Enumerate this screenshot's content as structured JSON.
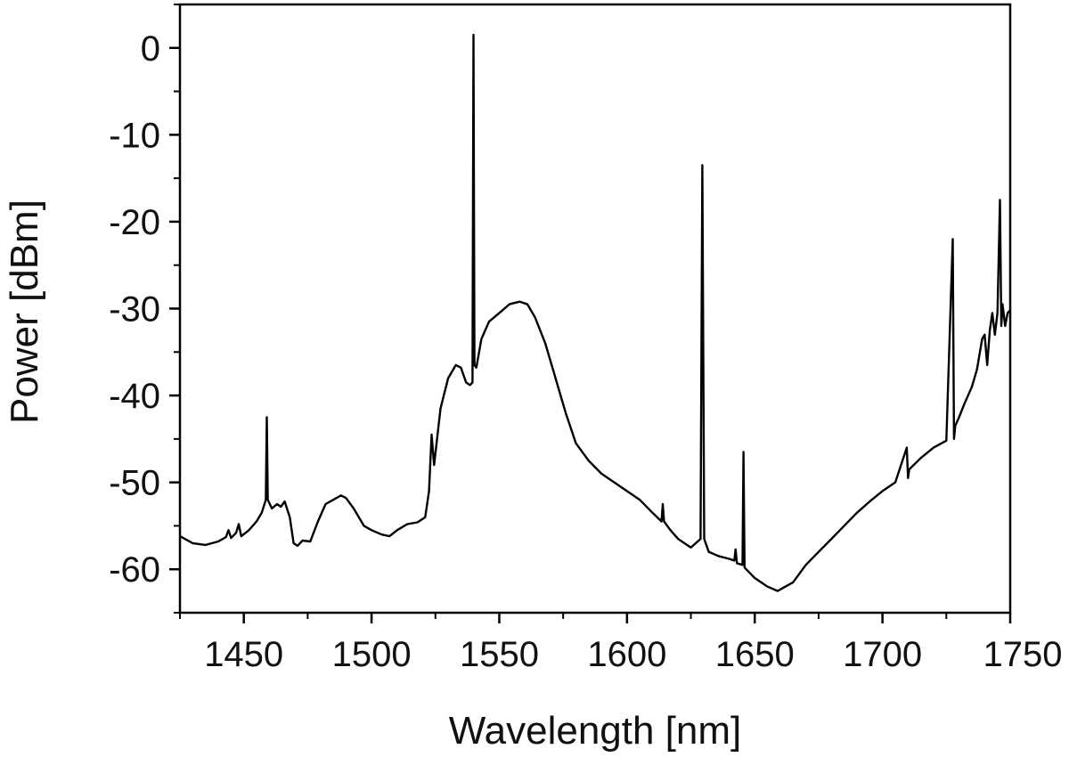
{
  "chart_data": {
    "type": "line",
    "title": "",
    "xlabel": "Wavelength [nm]",
    "ylabel": "Power [dBm]",
    "xlim": [
      1425,
      1750
    ],
    "ylim": [
      -65,
      5
    ],
    "grid": false,
    "legend": "none",
    "x_ticks": [
      1450,
      1500,
      1550,
      1600,
      1650,
      1700,
      1750
    ],
    "y_ticks": [
      0,
      -10,
      -20,
      -30,
      -40,
      -50,
      -60
    ],
    "line_color": "#000000",
    "series": [
      {
        "x": [
          1425,
          1430,
          1435,
          1440,
          1443,
          1444,
          1445,
          1447,
          1448,
          1449,
          1452,
          1455,
          1457,
          1458.6,
          1459,
          1459.4,
          1461,
          1463,
          1464.5,
          1466,
          1468,
          1469.5,
          1471,
          1473,
          1476,
          1479,
          1482,
          1485,
          1488,
          1490,
          1493,
          1497,
          1500,
          1504,
          1507,
          1510,
          1514,
          1518,
          1521,
          1522.5,
          1523.5,
          1524.5,
          1527,
          1530,
          1533,
          1535,
          1537,
          1538.5,
          1539.5,
          1539.9,
          1540.3,
          1541,
          1543,
          1546,
          1550,
          1554,
          1558,
          1561,
          1564,
          1568,
          1572,
          1576,
          1580,
          1585,
          1590,
          1595,
          1600,
          1605,
          1610,
          1613.5,
          1614,
          1614.5,
          1617,
          1620,
          1625,
          1628.8,
          1629.5,
          1630.2,
          1632,
          1636,
          1640,
          1642,
          1642.5,
          1643,
          1645.2,
          1645.6,
          1646,
          1650,
          1655,
          1659,
          1662,
          1665,
          1670,
          1675,
          1680,
          1685,
          1690,
          1695,
          1700,
          1705,
          1709.5,
          1710,
          1710.5,
          1715,
          1720,
          1725,
          1727.5,
          1728,
          1728.5,
          1730,
          1732,
          1735,
          1737,
          1739,
          1740,
          1741,
          1742,
          1743,
          1744,
          1745,
          1746,
          1746.5,
          1747,
          1748,
          1749,
          1750
        ],
        "y": [
          -56.2,
          -57,
          -57.2,
          -56.8,
          -56.3,
          -55.5,
          -56.4,
          -55.8,
          -54.8,
          -56.2,
          -55.5,
          -54.5,
          -53.5,
          -52,
          -42.5,
          -52,
          -53,
          -52.5,
          -52.8,
          -52.2,
          -54,
          -57,
          -57.3,
          -56.7,
          -56.8,
          -54.5,
          -52.5,
          -52,
          -51.5,
          -51.8,
          -53,
          -55,
          -55.5,
          -56,
          -56.2,
          -55.5,
          -54.8,
          -54.6,
          -54,
          -51,
          -44.5,
          -48,
          -41.5,
          -38,
          -36.5,
          -36.8,
          -38.5,
          -38.8,
          -38.5,
          1.5,
          -36.5,
          -36.8,
          -33.5,
          -31.5,
          -30.5,
          -29.5,
          -29.2,
          -29.5,
          -31,
          -34,
          -38,
          -42,
          -45.5,
          -47.5,
          -49,
          -50,
          -51,
          -52,
          -53.5,
          -54.5,
          -52.5,
          -54.5,
          -55.5,
          -56.5,
          -57.5,
          -56.5,
          -13.5,
          -56.5,
          -58,
          -58.5,
          -58.8,
          -59,
          -57.7,
          -59.3,
          -59.5,
          -46.5,
          -59.8,
          -61,
          -62,
          -62.5,
          -62,
          -61.5,
          -59.5,
          -58,
          -56.5,
          -55,
          -53.5,
          -52.2,
          -51,
          -50,
          -46,
          -49.5,
          -48.5,
          -47.2,
          -46,
          -45.2,
          -22,
          -45,
          -43.5,
          -42.5,
          -41,
          -39,
          -37,
          -33.5,
          -33,
          -36.5,
          -32.5,
          -30.5,
          -33,
          -30.5,
          -17.5,
          -32,
          -29.5,
          -32,
          -30.5,
          -30.2
        ]
      }
    ]
  }
}
